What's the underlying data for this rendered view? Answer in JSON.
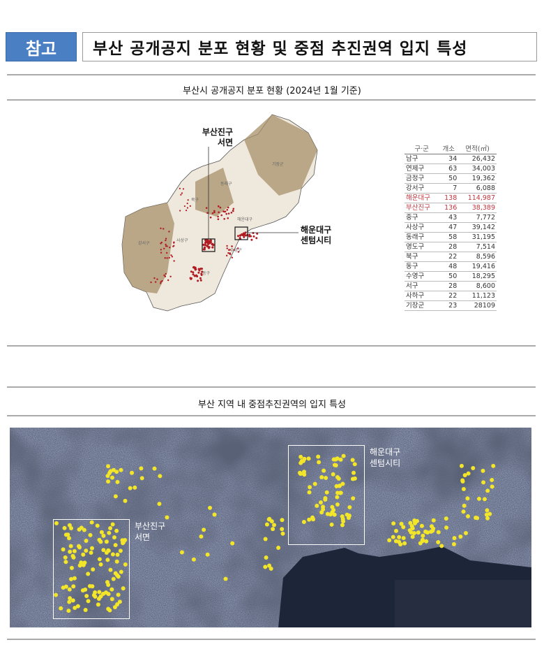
{
  "header": {
    "tag": "참고",
    "title": "부산 공개공지 분포 현황 및 중점 추진권역 입지 특성"
  },
  "section1": {
    "subtitle": "부산시 공개공지 분포 현황 (2024년 1월 기준)",
    "map_labels": {
      "seomyeon": [
        "부산진구",
        "서면"
      ],
      "centum": [
        "해운대구",
        "센텀시티"
      ]
    },
    "district_labels": [
      "기장군",
      "동래구",
      "북구",
      "해운대구",
      "강서구",
      "사상구",
      "수영구",
      "동구"
    ],
    "table": {
      "headers": [
        "구·군",
        "개소",
        "면적(㎡)"
      ],
      "rows": [
        [
          "남구",
          "34",
          "26,432"
        ],
        [
          "연제구",
          "63",
          "34,003"
        ],
        [
          "금정구",
          "50",
          "19,362"
        ],
        [
          "강서구",
          "7",
          "6,088"
        ],
        [
          "해운대구",
          "138",
          "114,987"
        ],
        [
          "부산진구",
          "136",
          "38,389"
        ],
        [
          "중구",
          "43",
          "7,772"
        ],
        [
          "사상구",
          "47",
          "39,142"
        ],
        [
          "동래구",
          "58",
          "31,195"
        ],
        [
          "영도구",
          "28",
          "7,514"
        ],
        [
          "북구",
          "22",
          "8,596"
        ],
        [
          "동구",
          "48",
          "19,416"
        ],
        [
          "수영구",
          "50",
          "18,295"
        ],
        [
          "서구",
          "28",
          "8,600"
        ],
        [
          "사하구",
          "22",
          "11,123"
        ],
        [
          "기장군",
          "23",
          "28109"
        ]
      ],
      "highlight_rows": [
        4,
        5
      ],
      "highlight_color": "#c0373f"
    }
  },
  "section2": {
    "subtitle": "부산 지역 내 중점추진권역의 입지 특성",
    "labels": {
      "seomyeon": [
        "부산진구",
        "서면"
      ],
      "centum": [
        "해운대구",
        "센텀시티"
      ]
    },
    "dot_color": "#f2e52a"
  },
  "colors": {
    "tag": "#4a7fc4",
    "map_terrain": "#a8906a",
    "map_points": "#b01c22"
  }
}
